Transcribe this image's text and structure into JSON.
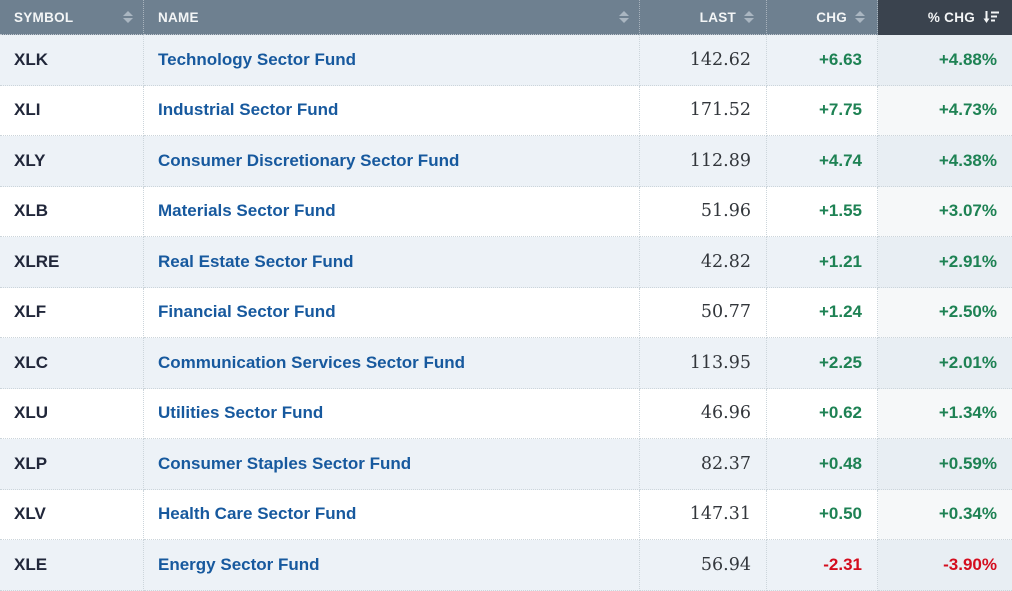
{
  "table": {
    "columns": [
      {
        "key": "symbol",
        "label": "SYMBOL",
        "sorted": false,
        "sort_dir": "none"
      },
      {
        "key": "name",
        "label": "NAME",
        "sorted": false,
        "sort_dir": "none"
      },
      {
        "key": "last",
        "label": "LAST",
        "sorted": false,
        "sort_dir": "none"
      },
      {
        "key": "chg",
        "label": "CHG",
        "sorted": false,
        "sort_dir": "none"
      },
      {
        "key": "pct_chg",
        "label": "% CHG",
        "sorted": true,
        "sort_dir": "desc"
      }
    ],
    "rows": [
      {
        "symbol": "XLK",
        "name": "Technology Sector Fund",
        "last": "142.62",
        "chg": "+6.63",
        "pct_chg": "+4.88%"
      },
      {
        "symbol": "XLI",
        "name": "Industrial Sector Fund",
        "last": "171.52",
        "chg": "+7.75",
        "pct_chg": "+4.73%"
      },
      {
        "symbol": "XLY",
        "name": "Consumer Discretionary Sector Fund",
        "last": "112.89",
        "chg": "+4.74",
        "pct_chg": "+4.38%"
      },
      {
        "symbol": "XLB",
        "name": "Materials Sector Fund",
        "last": "51.96",
        "chg": "+1.55",
        "pct_chg": "+3.07%"
      },
      {
        "symbol": "XLRE",
        "name": "Real Estate Sector Fund",
        "last": "42.82",
        "chg": "+1.21",
        "pct_chg": "+2.91%"
      },
      {
        "symbol": "XLF",
        "name": "Financial Sector Fund",
        "last": "50.77",
        "chg": "+1.24",
        "pct_chg": "+2.50%"
      },
      {
        "symbol": "XLC",
        "name": "Communication Services Sector Fund",
        "last": "113.95",
        "chg": "+2.25",
        "pct_chg": "+2.01%"
      },
      {
        "symbol": "XLU",
        "name": "Utilities Sector Fund",
        "last": "46.96",
        "chg": "+0.62",
        "pct_chg": "+1.34%"
      },
      {
        "symbol": "XLP",
        "name": "Consumer Staples Sector Fund",
        "last": "82.37",
        "chg": "+0.48",
        "pct_chg": "+0.59%"
      },
      {
        "symbol": "XLV",
        "name": "Health Care Sector Fund",
        "last": "147.31",
        "chg": "+0.50",
        "pct_chg": "+0.34%"
      },
      {
        "symbol": "XLE",
        "name": "Energy Sector Fund",
        "last": "56.94",
        "chg": "-2.31",
        "pct_chg": "-3.90%"
      }
    ]
  },
  "icons": {
    "sort_unsorted": "sort-up-down-arrows",
    "sort_descending": "sort-amount-down-arrow"
  },
  "colors": {
    "header_bg": "#6e8090",
    "header_sorted_bg": "#3a434e",
    "header_text": "#f3f5f6",
    "row_alt_bg": "#edf2f7",
    "symbol_text": "#21273a",
    "name_link": "#17599e",
    "positive": "#1e8254",
    "negative": "#d40d1e"
  }
}
